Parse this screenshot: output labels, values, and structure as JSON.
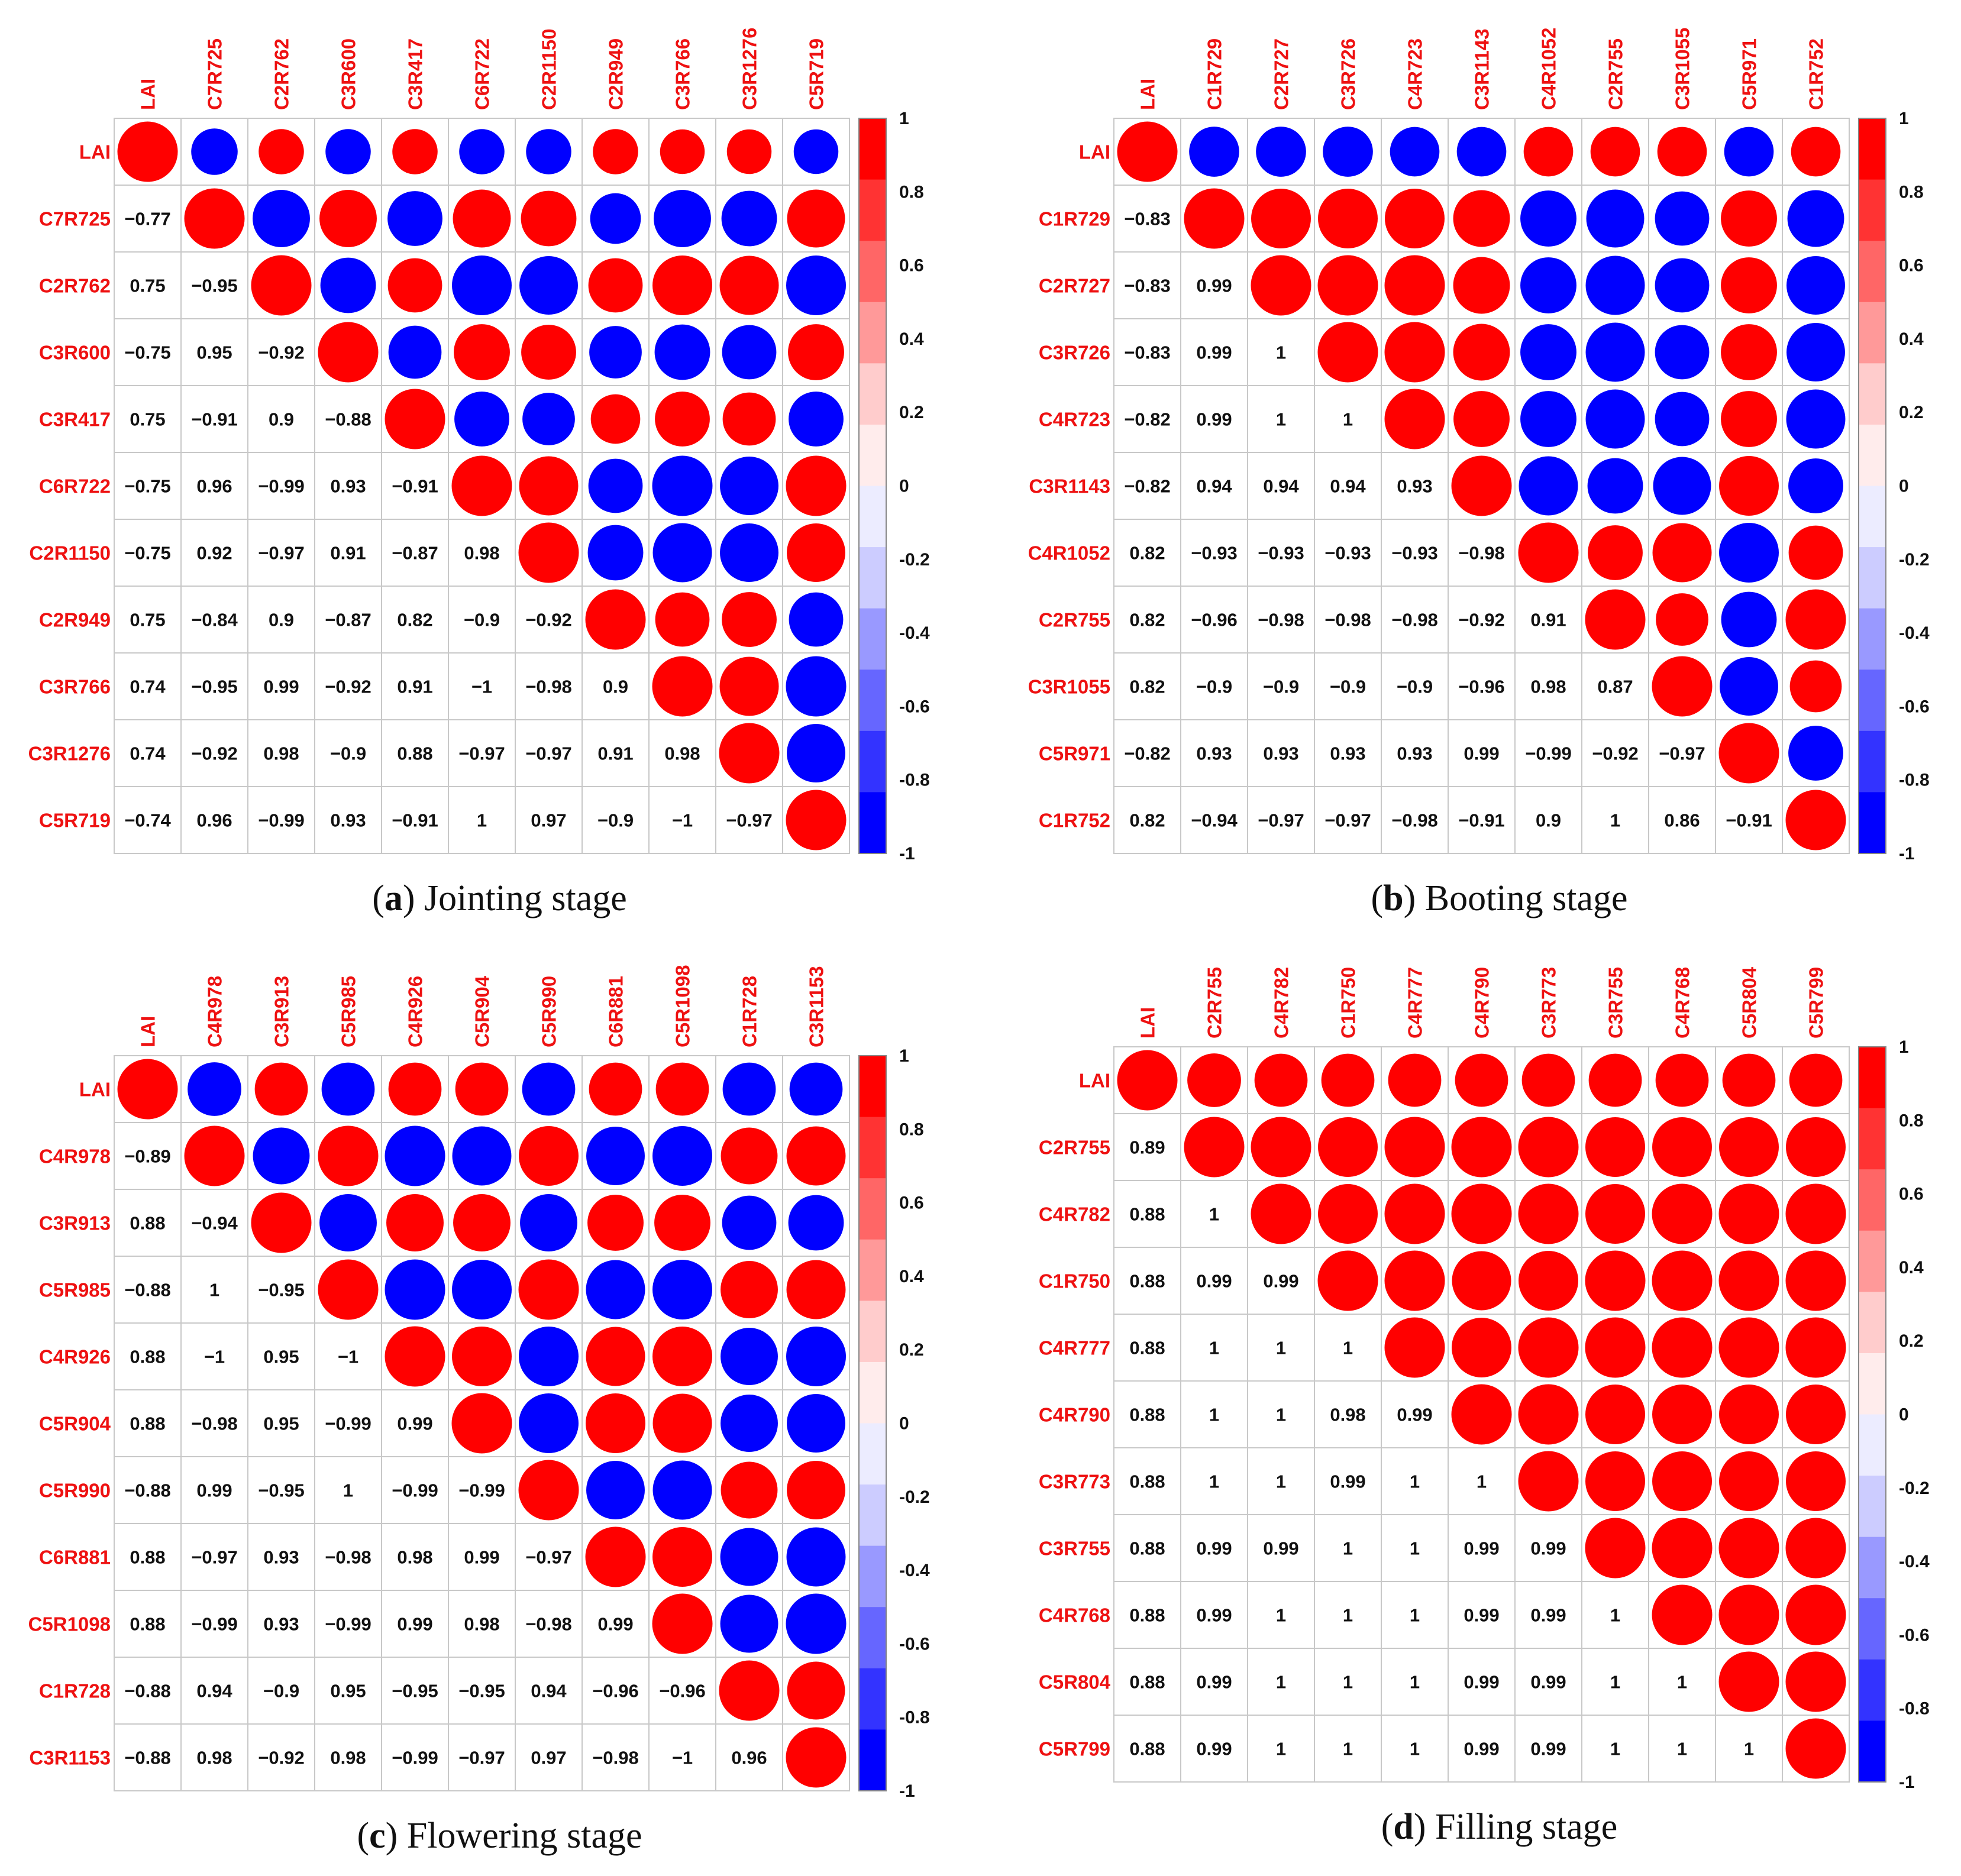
{
  "colors": {
    "positive": "#ff0000",
    "negative": "#0000ff",
    "label": "#ee1111",
    "grid": "#c8c8c8"
  },
  "colorbar_ticks": [
    "1",
    "0.8",
    "0.6",
    "0.4",
    "0.2",
    "0",
    "-0.2",
    "-0.4",
    "-0.6",
    "-0.8",
    "-1"
  ],
  "colorbar_steps": [
    "#ff0000",
    "#ff3333",
    "#ff6666",
    "#ff9999",
    "#ffcccc",
    "#ffecec",
    "#ececff",
    "#ccccff",
    "#9999ff",
    "#6666ff",
    "#3333ff",
    "#0000ff"
  ],
  "chart_data": [
    {
      "type": "heatmap",
      "panel": "a",
      "caption_letter": "a",
      "caption_text": ") Jointing stage",
      "variables": [
        "LAI",
        "C7R725",
        "C2R762",
        "C3R600",
        "C3R417",
        "C6R722",
        "C2R1150",
        "C2R949",
        "C3R766",
        "C3R1276",
        "C5R719"
      ],
      "lower": [
        [],
        [
          "−0.77"
        ],
        [
          "0.75",
          "−0.95"
        ],
        [
          "−0.75",
          "0.95",
          "−0.92"
        ],
        [
          "0.75",
          "−0.91",
          "0.9",
          "−0.88"
        ],
        [
          "−0.75",
          "0.96",
          "−0.99",
          "0.93",
          "−0.91"
        ],
        [
          "−0.75",
          "0.92",
          "−0.97",
          "0.91",
          "−0.87",
          "0.98"
        ],
        [
          "0.75",
          "−0.84",
          "0.9",
          "−0.87",
          "0.82",
          "−0.9",
          "−0.92"
        ],
        [
          "0.74",
          "−0.95",
          "0.99",
          "−0.92",
          "0.91",
          "−1",
          "−0.98",
          "0.9"
        ],
        [
          "0.74",
          "−0.92",
          "0.98",
          "−0.9",
          "0.88",
          "−0.97",
          "−0.97",
          "0.91",
          "0.98"
        ],
        [
          "−0.74",
          "0.96",
          "−0.99",
          "0.93",
          "−0.91",
          "1",
          "0.97",
          "−0.9",
          "−1",
          "−0.97"
        ]
      ]
    },
    {
      "type": "heatmap",
      "panel": "b",
      "caption_letter": "b",
      "caption_text": ") Booting stage",
      "variables": [
        "LAI",
        "C1R729",
        "C2R727",
        "C3R726",
        "C4R723",
        "C3R1143",
        "C4R1052",
        "C2R755",
        "C3R1055",
        "C5R971",
        "C1R752"
      ],
      "lower": [
        [],
        [
          "−0.83"
        ],
        [
          "−0.83",
          "0.99"
        ],
        [
          "−0.83",
          "0.99",
          "1"
        ],
        [
          "−0.82",
          "0.99",
          "1",
          "1"
        ],
        [
          "−0.82",
          "0.94",
          "0.94",
          "0.94",
          "0.93"
        ],
        [
          "0.82",
          "−0.93",
          "−0.93",
          "−0.93",
          "−0.93",
          "−0.98"
        ],
        [
          "0.82",
          "−0.96",
          "−0.98",
          "−0.98",
          "−0.98",
          "−0.92",
          "0.91"
        ],
        [
          "0.82",
          "−0.9",
          "−0.9",
          "−0.9",
          "−0.9",
          "−0.96",
          "0.98",
          "0.87"
        ],
        [
          "−0.82",
          "0.93",
          "0.93",
          "0.93",
          "0.93",
          "0.99",
          "−0.99",
          "−0.92",
          "−0.97"
        ],
        [
          "0.82",
          "−0.94",
          "−0.97",
          "−0.97",
          "−0.98",
          "−0.91",
          "0.9",
          "1",
          "0.86",
          "−0.91"
        ]
      ]
    },
    {
      "type": "heatmap",
      "panel": "c",
      "caption_letter": "c",
      "caption_text": ") Flowering stage",
      "variables": [
        "LAI",
        "C4R978",
        "C3R913",
        "C5R985",
        "C4R926",
        "C5R904",
        "C5R990",
        "C6R881",
        "C5R1098",
        "C1R728",
        "C3R1153"
      ],
      "lower": [
        [],
        [
          "−0.89"
        ],
        [
          "0.88",
          "−0.94"
        ],
        [
          "−0.88",
          "1",
          "−0.95"
        ],
        [
          "0.88",
          "−1",
          "0.95",
          "−1"
        ],
        [
          "0.88",
          "−0.98",
          "0.95",
          "−0.99",
          "0.99"
        ],
        [
          "−0.88",
          "0.99",
          "−0.95",
          "1",
          "−0.99",
          "−0.99"
        ],
        [
          "0.88",
          "−0.97",
          "0.93",
          "−0.98",
          "0.98",
          "0.99",
          "−0.97"
        ],
        [
          "0.88",
          "−0.99",
          "0.93",
          "−0.99",
          "0.99",
          "0.98",
          "−0.98",
          "0.99"
        ],
        [
          "−0.88",
          "0.94",
          "−0.9",
          "0.95",
          "−0.95",
          "−0.95",
          "0.94",
          "−0.96",
          "−0.96"
        ],
        [
          "−0.88",
          "0.98",
          "−0.92",
          "0.98",
          "−0.99",
          "−0.97",
          "0.97",
          "−0.98",
          "−1",
          "0.96"
        ]
      ]
    },
    {
      "type": "heatmap",
      "panel": "d",
      "caption_letter": "d",
      "caption_text": ") Filling stage",
      "variables": [
        "LAI",
        "C2R755",
        "C4R782",
        "C1R750",
        "C4R777",
        "C4R790",
        "C3R773",
        "C3R755",
        "C4R768",
        "C5R804",
        "C5R799"
      ],
      "lower": [
        [],
        [
          "0.89"
        ],
        [
          "0.88",
          "1"
        ],
        [
          "0.88",
          "0.99",
          "0.99"
        ],
        [
          "0.88",
          "1",
          "1",
          "1"
        ],
        [
          "0.88",
          "1",
          "1",
          "0.98",
          "0.99"
        ],
        [
          "0.88",
          "1",
          "1",
          "0.99",
          "1",
          "1"
        ],
        [
          "0.88",
          "0.99",
          "0.99",
          "1",
          "1",
          "0.99",
          "0.99"
        ],
        [
          "0.88",
          "0.99",
          "1",
          "1",
          "1",
          "0.99",
          "0.99",
          "1"
        ],
        [
          "0.88",
          "0.99",
          "1",
          "1",
          "1",
          "0.99",
          "0.99",
          "1",
          "1"
        ],
        [
          "0.88",
          "0.99",
          "1",
          "1",
          "1",
          "0.99",
          "0.99",
          "1",
          "1",
          "1"
        ]
      ]
    }
  ]
}
